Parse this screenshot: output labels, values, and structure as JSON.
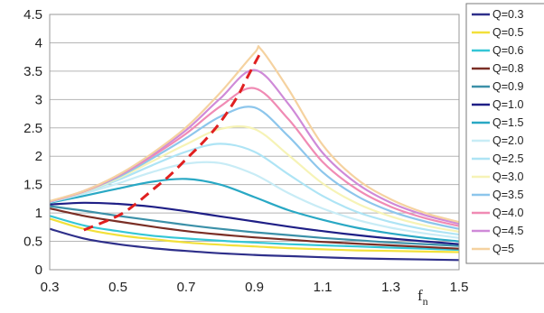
{
  "chart_data": {
    "type": "line",
    "title": "",
    "xlabel": "f_n",
    "xlabel_main": "f",
    "xlabel_sub": "n",
    "ylabel": "",
    "xlim": [
      0.3,
      1.5
    ],
    "ylim": [
      0,
      4.5
    ],
    "x_ticks": [
      0.3,
      0.5,
      0.7,
      0.9,
      1.1,
      1.3,
      1.5
    ],
    "y_ticks": [
      0,
      0.5,
      1,
      1.5,
      2,
      2.5,
      3,
      3.5,
      4,
      4.5
    ],
    "x_tick_labels": [
      "0.3",
      "0.5",
      "0.7",
      "0.9",
      "1.1",
      "1.3",
      "1.5"
    ],
    "y_tick_labels": [
      "0",
      "0.5",
      "1",
      "1.5",
      "2",
      "2.5",
      "3",
      "3.5",
      "4",
      "4.5"
    ],
    "grid": "horizontal",
    "legend_position": "right",
    "series": [
      {
        "name": "Q=0.3",
        "color": "#2e2f8a",
        "x": [
          0.3,
          0.4,
          0.5,
          0.6,
          0.7,
          0.8,
          0.9,
          1.0,
          1.1,
          1.2,
          1.3,
          1.4,
          1.5
        ],
        "y": [
          0.72,
          0.55,
          0.45,
          0.38,
          0.33,
          0.29,
          0.26,
          0.24,
          0.22,
          0.2,
          0.19,
          0.18,
          0.17
        ]
      },
      {
        "name": "Q=0.5",
        "color": "#f2e03a",
        "x": [
          0.3,
          0.4,
          0.5,
          0.6,
          0.7,
          0.8,
          0.9,
          1.0,
          1.1,
          1.2,
          1.3,
          1.4,
          1.5
        ],
        "y": [
          0.9,
          0.72,
          0.61,
          0.54,
          0.48,
          0.44,
          0.41,
          0.38,
          0.36,
          0.34,
          0.33,
          0.32,
          0.31
        ]
      },
      {
        "name": "Q=0.6",
        "color": "#34c6d6",
        "x": [
          0.3,
          0.4,
          0.5,
          0.6,
          0.7,
          0.8,
          0.9,
          1.0,
          1.1,
          1.2,
          1.3,
          1.4,
          1.5
        ],
        "y": [
          0.95,
          0.78,
          0.68,
          0.6,
          0.55,
          0.51,
          0.48,
          0.45,
          0.43,
          0.41,
          0.39,
          0.37,
          0.35
        ]
      },
      {
        "name": "Q=0.8",
        "color": "#7a2e25",
        "x": [
          0.3,
          0.4,
          0.5,
          0.6,
          0.7,
          0.8,
          0.9,
          1.0,
          1.1,
          1.2,
          1.3,
          1.4,
          1.5
        ],
        "y": [
          1.08,
          0.95,
          0.85,
          0.76,
          0.68,
          0.62,
          0.57,
          0.53,
          0.49,
          0.46,
          0.43,
          0.4,
          0.37
        ]
      },
      {
        "name": "Q=0.9",
        "color": "#3b90a8",
        "x": [
          0.3,
          0.4,
          0.5,
          0.6,
          0.7,
          0.8,
          0.9,
          1.0,
          1.1,
          1.2,
          1.3,
          1.4,
          1.5
        ],
        "y": [
          1.12,
          1.04,
          0.95,
          0.87,
          0.79,
          0.72,
          0.66,
          0.61,
          0.56,
          0.52,
          0.48,
          0.45,
          0.42
        ]
      },
      {
        "name": "Q=1.0",
        "color": "#1f1f86",
        "x": [
          0.3,
          0.4,
          0.5,
          0.6,
          0.7,
          0.8,
          0.9,
          1.0,
          1.1,
          1.2,
          1.3,
          1.4,
          1.5
        ],
        "y": [
          1.15,
          1.18,
          1.16,
          1.11,
          1.03,
          0.94,
          0.85,
          0.76,
          0.68,
          0.61,
          0.55,
          0.5,
          0.45
        ]
      },
      {
        "name": "Q=1.5",
        "color": "#29a8c4",
        "x": [
          0.3,
          0.4,
          0.5,
          0.6,
          0.7,
          0.8,
          0.9,
          1.0,
          1.1,
          1.2,
          1.3,
          1.4,
          1.5
        ],
        "y": [
          1.18,
          1.3,
          1.43,
          1.55,
          1.6,
          1.5,
          1.28,
          1.05,
          0.88,
          0.74,
          0.64,
          0.56,
          0.5
        ]
      },
      {
        "name": "Q=2.0",
        "color": "#c8ecf6",
        "x": [
          0.3,
          0.4,
          0.5,
          0.6,
          0.7,
          0.8,
          0.9,
          1.0,
          1.1,
          1.2,
          1.3,
          1.4,
          1.5
        ],
        "y": [
          1.19,
          1.34,
          1.52,
          1.72,
          1.87,
          1.88,
          1.68,
          1.35,
          1.08,
          0.88,
          0.74,
          0.64,
          0.56
        ]
      },
      {
        "name": "Q=2.5",
        "color": "#aee4f5",
        "x": [
          0.3,
          0.4,
          0.5,
          0.6,
          0.7,
          0.8,
          0.9,
          1.0,
          1.1,
          1.2,
          1.3,
          1.4,
          1.5
        ],
        "y": [
          1.19,
          1.36,
          1.58,
          1.84,
          2.08,
          2.22,
          2.08,
          1.68,
          1.3,
          1.02,
          0.84,
          0.71,
          0.62
        ]
      },
      {
        "name": "Q=3.0",
        "color": "#f6f3b6",
        "x": [
          0.3,
          0.4,
          0.5,
          0.6,
          0.7,
          0.8,
          0.9,
          1.0,
          1.1,
          1.2,
          1.3,
          1.4,
          1.5
        ],
        "y": [
          1.2,
          1.37,
          1.61,
          1.91,
          2.21,
          2.48,
          2.48,
          2.02,
          1.52,
          1.17,
          0.94,
          0.78,
          0.67
        ]
      },
      {
        "name": "Q=3.5",
        "color": "#8dc6ec",
        "x": [
          0.3,
          0.4,
          0.5,
          0.6,
          0.7,
          0.8,
          0.9,
          1.0,
          1.1,
          1.2,
          1.3,
          1.4,
          1.5
        ],
        "y": [
          1.2,
          1.38,
          1.63,
          1.96,
          2.32,
          2.7,
          2.86,
          2.35,
          1.72,
          1.3,
          1.03,
          0.85,
          0.72
        ]
      },
      {
        "name": "Q=4.0",
        "color": "#f08bb4",
        "x": [
          0.3,
          0.4,
          0.5,
          0.6,
          0.7,
          0.8,
          0.9,
          1.0,
          1.1,
          1.2,
          1.3,
          1.4,
          1.5
        ],
        "y": [
          1.2,
          1.38,
          1.65,
          2.0,
          2.4,
          2.88,
          3.2,
          2.65,
          1.9,
          1.42,
          1.11,
          0.91,
          0.77
        ]
      },
      {
        "name": "Q=4.5",
        "color": "#cf8ad8",
        "x": [
          0.3,
          0.4,
          0.5,
          0.6,
          0.7,
          0.8,
          0.9,
          1.0,
          1.1,
          1.2,
          1.3,
          1.4,
          1.5
        ],
        "y": [
          1.2,
          1.39,
          1.66,
          2.03,
          2.46,
          3.02,
          3.52,
          2.92,
          2.06,
          1.52,
          1.18,
          0.96,
          0.81
        ]
      },
      {
        "name": "Q=5",
        "color": "#f5d2a0",
        "x": [
          0.3,
          0.4,
          0.5,
          0.6,
          0.7,
          0.8,
          0.9,
          0.92,
          1.0,
          1.1,
          1.2,
          1.3,
          1.4,
          1.5
        ],
        "y": [
          1.21,
          1.39,
          1.67,
          2.05,
          2.51,
          3.12,
          3.82,
          3.88,
          3.18,
          2.2,
          1.6,
          1.24,
          1.0,
          0.84
        ]
      }
    ],
    "peak_curve": {
      "color": "#e02020",
      "style": "dashed",
      "x": [
        0.4,
        0.5,
        0.55,
        0.6,
        0.65,
        0.7,
        0.75,
        0.8,
        0.85,
        0.88,
        0.92
      ],
      "y": [
        0.7,
        0.95,
        1.15,
        1.4,
        1.65,
        1.95,
        2.25,
        2.6,
        3.05,
        3.4,
        3.85
      ]
    }
  }
}
